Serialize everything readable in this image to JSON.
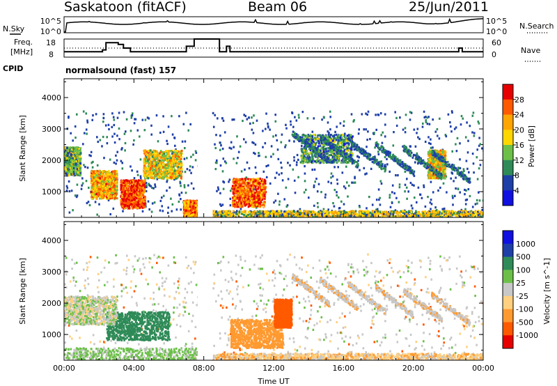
{
  "header": {
    "station": "Saskatoon (fitACF)",
    "beam": "Beam 06",
    "date": "25/Jun/2011"
  },
  "panels": {
    "nsky": {
      "left_label": "N.Sky",
      "right_label": "N.Search",
      "left_ticks": [
        "10^5",
        "10^0"
      ],
      "right_ticks": [
        "10^5",
        "10^0"
      ]
    },
    "freq": {
      "left_label_1": "Freq.",
      "left_label_2": "[MHz]",
      "right_label": "Nave",
      "left_ticks": [
        "18",
        "8"
      ],
      "right_ticks": [
        "60",
        "0"
      ]
    },
    "cpid": {
      "label": "CPID",
      "text": "normalsound (fast) 157"
    }
  },
  "chart_data": [
    {
      "type": "heatmap",
      "title": "",
      "xlabel": "Time UT",
      "ylabel": "Slant Range [km]",
      "ylim": [
        180,
        4600
      ],
      "xlim": [
        "00:00",
        "24:00"
      ],
      "x_ticks": [
        "00:00",
        "04:00",
        "08:00",
        "12:00",
        "16:00",
        "20:00",
        "00:00"
      ],
      "y_ticks": [
        "1000",
        "2000",
        "3000",
        "4000"
      ],
      "colorbar": {
        "label": "Power [dB]",
        "range": [
          0,
          30
        ],
        "ticks": [
          "4",
          "8",
          "12",
          "16",
          "20",
          "24",
          "28"
        ],
        "colors": [
          "#1010e0",
          "#1e3fa8",
          "#2e8b57",
          "#6cc04a",
          "#ffd700",
          "#ffa500",
          "#ff5a00",
          "#e60000"
        ]
      },
      "data_gap_hours": [
        7.65,
        8.45
      ],
      "features": [
        {
          "t_start": 0.0,
          "t_end": 0.9,
          "range": 2000,
          "value": 12
        },
        {
          "t_start": 1.5,
          "t_end": 3.0,
          "range": 1250,
          "value": 20
        },
        {
          "t_start": 3.2,
          "t_end": 4.6,
          "range": 950,
          "value": 26
        },
        {
          "t_start": 4.5,
          "t_end": 6.7,
          "range": 1900,
          "value": 17
        },
        {
          "t_start": 6.8,
          "t_end": 7.6,
          "range": 300,
          "value": 22
        },
        {
          "t_start": 9.6,
          "t_end": 11.5,
          "range": 1000,
          "value": 24
        },
        {
          "t_start": 13.5,
          "t_end": 16.5,
          "range": 2400,
          "value": 10
        },
        {
          "t_start": 20.8,
          "t_end": 21.8,
          "range": 1900,
          "value": 18
        }
      ]
    },
    {
      "type": "heatmap",
      "title": "",
      "xlabel": "Time UT",
      "ylabel": "Slant Range [km]",
      "ylim": [
        180,
        4600
      ],
      "xlim": [
        "00:00",
        "24:00"
      ],
      "x_ticks": [
        "00:00",
        "04:00",
        "08:00",
        "12:00",
        "16:00",
        "20:00",
        "00:00"
      ],
      "y_ticks": [
        "1000",
        "2000",
        "3000",
        "4000"
      ],
      "colorbar": {
        "label": "Velocity [m s^-1]",
        "range": [
          -1000,
          1000
        ],
        "ticks": [
          "1000",
          "500",
          "100",
          "25",
          "-25",
          "-100",
          "-500",
          "-1000"
        ],
        "colors": [
          "#e60000",
          "#ff5a00",
          "#ff9a30",
          "#ffd080",
          "#c8c8c8",
          "#6cc04a",
          "#2e8b57",
          "#1e3fa8",
          "#1010e0"
        ]
      },
      "data_gap_hours": [
        7.65,
        8.45
      ],
      "features": [
        {
          "t_start": 2.4,
          "t_end": 6.0,
          "range": 1300,
          "value": 300
        },
        {
          "t_start": 0.0,
          "t_end": 3.0,
          "range": 1800,
          "value": 0
        },
        {
          "t_start": 9.5,
          "t_end": 12.5,
          "range": 1050,
          "value": -350
        },
        {
          "t_start": 12.0,
          "t_end": 13.0,
          "range": 1700,
          "value": -600
        }
      ]
    }
  ],
  "series_top": {
    "nsky_baseline": 0.6,
    "freq_steps": [
      {
        "t": 0.0,
        "v": 11
      },
      {
        "t": 2.2,
        "v": 12
      },
      {
        "t": 2.4,
        "v": 16
      },
      {
        "t": 3.1,
        "v": 15
      },
      {
        "t": 3.4,
        "v": 13
      },
      {
        "t": 3.8,
        "v": 11
      },
      {
        "t": 7.0,
        "v": 14
      },
      {
        "t": 7.45,
        "v": 18
      },
      {
        "t": 8.9,
        "v": 11
      },
      {
        "t": 9.3,
        "v": 14
      },
      {
        "t": 9.5,
        "v": 11
      },
      {
        "t": 22.6,
        "v": 13
      },
      {
        "t": 22.8,
        "v": 11
      },
      {
        "t": 24.0,
        "v": 11
      }
    ],
    "nave_level": 15
  }
}
